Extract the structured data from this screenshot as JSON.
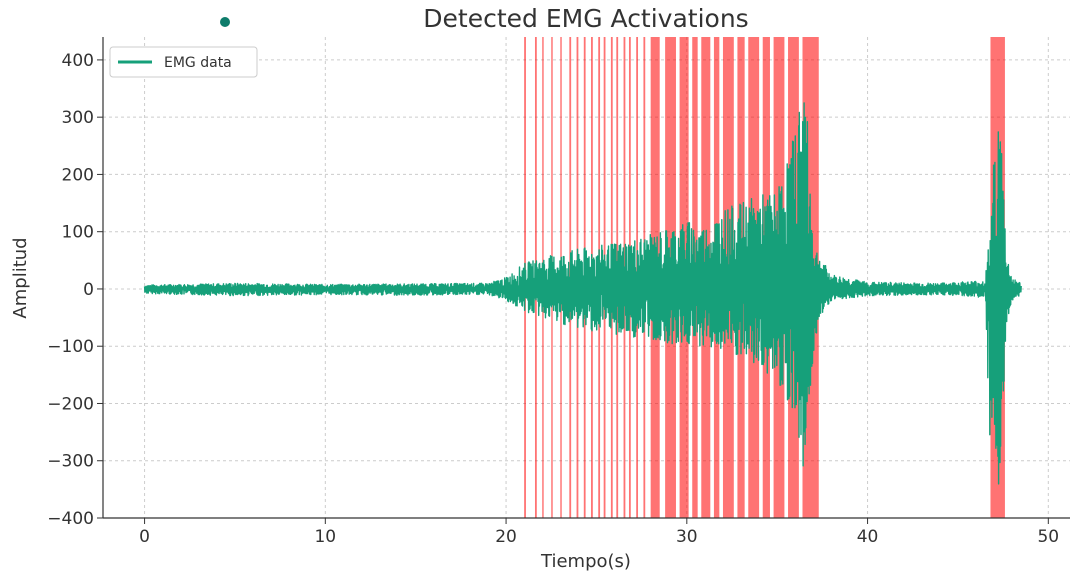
{
  "chart_data": {
    "type": "line",
    "title": "Detected EMG Activations",
    "xlabel": "Tiempo(s)",
    "ylabel": "Amplitud",
    "xlim": [
      -2.3,
      51.2
    ],
    "ylim": [
      -400,
      440
    ],
    "xticks": [
      0,
      10,
      20,
      30,
      40,
      50
    ],
    "xtick_labels": [
      "0",
      "10",
      "20",
      "30",
      "40",
      "50"
    ],
    "yticks": [
      -400,
      -300,
      -200,
      -100,
      0,
      100,
      200,
      300,
      400
    ],
    "ytick_labels": [
      "−400",
      "−300",
      "−200",
      "−100",
      "0",
      "100",
      "200",
      "300",
      "400"
    ],
    "grid": true,
    "legend_position": "top-left",
    "series": [
      {
        "name": "EMG data",
        "color": "#16a07a",
        "envelope": {
          "t": [
            0,
            5,
            10,
            15,
            19,
            20,
            21,
            22,
            24,
            26,
            28,
            30,
            31,
            32,
            33,
            34,
            35,
            36,
            36.5,
            37,
            37.3,
            38,
            40,
            44,
            46.5,
            46.8,
            47,
            47.2,
            47.4,
            47.7,
            48,
            48.5
          ],
          "max": [
            7,
            10,
            8,
            9,
            10,
            20,
            45,
            55,
            70,
            80,
            95,
            120,
            110,
            140,
            150,
            165,
            170,
            280,
            400,
            90,
            60,
            25,
            12,
            10,
            15,
            110,
            240,
            310,
            270,
            60,
            20,
            10
          ],
          "min": [
            -8,
            -12,
            -10,
            -11,
            -10,
            -20,
            -40,
            -50,
            -70,
            -80,
            -90,
            -100,
            -100,
            -110,
            -125,
            -140,
            -160,
            -220,
            -330,
            -120,
            -50,
            -20,
            -12,
            -10,
            -15,
            -360,
            -390,
            -395,
            -330,
            -60,
            -20,
            -10
          ]
        }
      }
    ],
    "activation_color": "#ff0000",
    "activations": [
      [
        21.0,
        21.1
      ],
      [
        21.6,
        21.7
      ],
      [
        22.0,
        22.08
      ],
      [
        22.5,
        22.58
      ],
      [
        23.0,
        23.08
      ],
      [
        23.5,
        23.6
      ],
      [
        23.9,
        24.0
      ],
      [
        24.3,
        24.4
      ],
      [
        24.7,
        24.8
      ],
      [
        25.1,
        25.2
      ],
      [
        25.4,
        25.5
      ],
      [
        25.8,
        25.9
      ],
      [
        26.1,
        26.2
      ],
      [
        26.5,
        26.6
      ],
      [
        26.8,
        26.9
      ],
      [
        27.2,
        27.3
      ],
      [
        27.6,
        27.7
      ],
      [
        28.0,
        28.5
      ],
      [
        28.8,
        29.4
      ],
      [
        29.6,
        30.1
      ],
      [
        30.3,
        30.6
      ],
      [
        30.8,
        31.3
      ],
      [
        31.5,
        31.8
      ],
      [
        32.0,
        32.6
      ],
      [
        32.8,
        33.2
      ],
      [
        33.4,
        34.0
      ],
      [
        34.2,
        34.6
      ],
      [
        34.8,
        35.4
      ],
      [
        35.6,
        36.2
      ],
      [
        36.4,
        37.3
      ],
      [
        46.8,
        47.6
      ]
    ]
  }
}
